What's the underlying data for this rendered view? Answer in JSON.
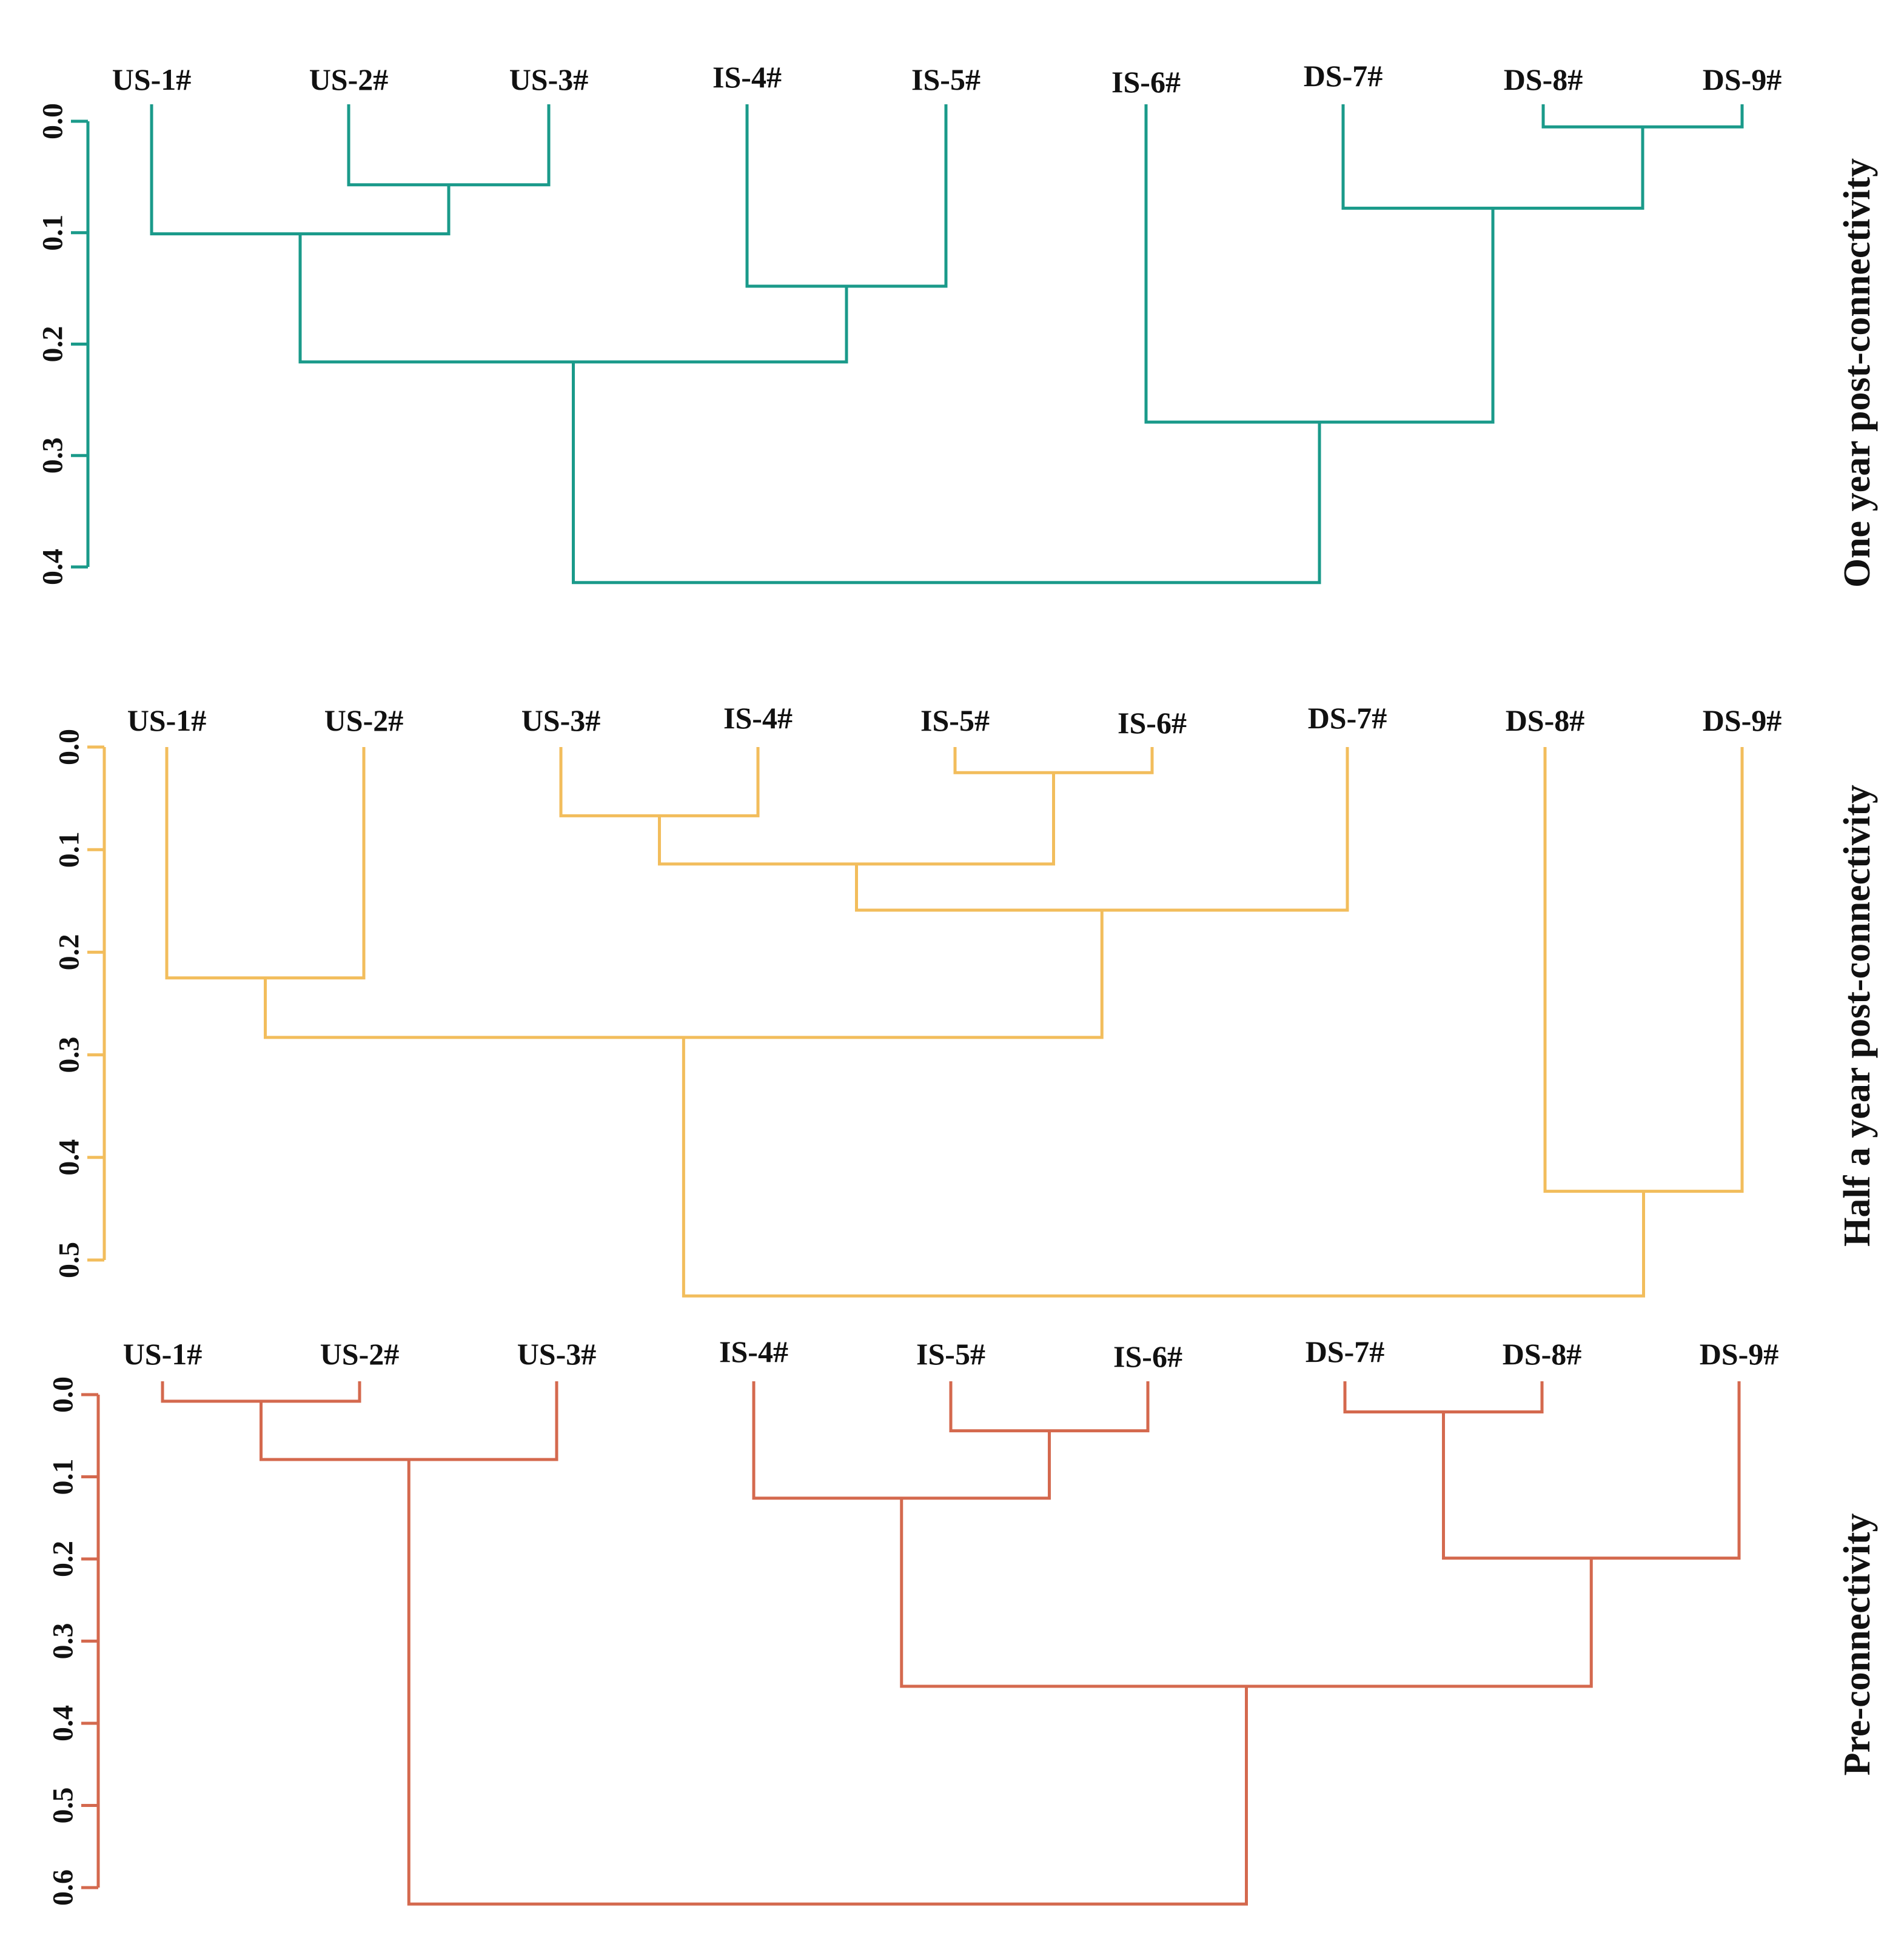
{
  "chart_data": [
    {
      "type": "dendrogram",
      "title": "One year post-connectivity",
      "color": "#1a9a8a",
      "ylim": [
        0,
        0.4
      ],
      "yticks": [
        "0.0",
        "0.1",
        "0.2",
        "0.3",
        "0.4"
      ],
      "leaves": [
        "US-1#",
        "US-2#",
        "US-3#",
        "IS-4#",
        "IS-5#",
        "IS-6#",
        "DS-7#",
        "DS-8#",
        "DS-9#"
      ],
      "merges": [
        {
          "left": "DS-8#",
          "right": "DS-9#",
          "height": 0.005
        },
        {
          "left": "US-2#",
          "right": "US-3#",
          "height": 0.057
        },
        {
          "left": "DS-7#",
          "right": "m0",
          "height": 0.078
        },
        {
          "left": "US-1#",
          "right": "m1",
          "height": 0.101
        },
        {
          "left": "IS-4#",
          "right": "IS-5#",
          "height": 0.148
        },
        {
          "left": "m3",
          "right": "m4",
          "height": 0.216
        },
        {
          "left": "IS-6#",
          "right": "m2",
          "height": 0.27
        },
        {
          "left": "m5",
          "right": "m6",
          "height": 0.414
        }
      ]
    },
    {
      "type": "dendrogram",
      "title": "Half a year post-connectivity",
      "color": "#f2bd5c",
      "ylim": [
        0,
        0.5
      ],
      "yticks": [
        "0.0",
        "0.1",
        "0.2",
        "0.3",
        "0.4",
        "0.5"
      ],
      "leaves": [
        "US-1#",
        "US-2#",
        "US-3#",
        "IS-4#",
        "IS-5#",
        "IS-6#",
        "DS-7#",
        "DS-8#",
        "DS-9#"
      ],
      "merges": [
        {
          "left": "IS-5#",
          "right": "IS-6#",
          "height": 0.025
        },
        {
          "left": "US-3#",
          "right": "IS-4#",
          "height": 0.067
        },
        {
          "left": "m1",
          "right": "m0",
          "height": 0.114
        },
        {
          "left": "m2",
          "right": "DS-7#",
          "height": 0.159
        },
        {
          "left": "US-1#",
          "right": "US-2#",
          "height": 0.225
        },
        {
          "left": "m4",
          "right": "m3",
          "height": 0.283
        },
        {
          "left": "DS-8#",
          "right": "DS-9#",
          "height": 0.433
        },
        {
          "left": "m5",
          "right": "m6",
          "height": 0.535
        }
      ]
    },
    {
      "type": "dendrogram",
      "title": "Pre-connectivity",
      "color": "#d4694e",
      "ylim": [
        0,
        0.6
      ],
      "yticks": [
        "0.0",
        "0.1",
        "0.2",
        "0.3",
        "0.4",
        "0.5",
        "0.6"
      ],
      "leaves": [
        "US-1#",
        "US-2#",
        "US-3#",
        "IS-4#",
        "IS-5#",
        "IS-6#",
        "DS-7#",
        "DS-8#",
        "DS-9#"
      ],
      "merges": [
        {
          "left": "US-1#",
          "right": "US-2#",
          "height": 0.008
        },
        {
          "left": "DS-7#",
          "right": "DS-8#",
          "height": 0.021
        },
        {
          "left": "IS-5#",
          "right": "IS-6#",
          "height": 0.044
        },
        {
          "left": "m0",
          "right": "US-3#",
          "height": 0.079
        },
        {
          "left": "IS-4#",
          "right": "m2",
          "height": 0.126
        },
        {
          "left": "m1",
          "right": "DS-9#",
          "height": 0.199
        },
        {
          "left": "m4",
          "right": "m5",
          "height": 0.355
        },
        {
          "left": "m3",
          "right": "m6",
          "height": 0.62
        }
      ]
    }
  ]
}
